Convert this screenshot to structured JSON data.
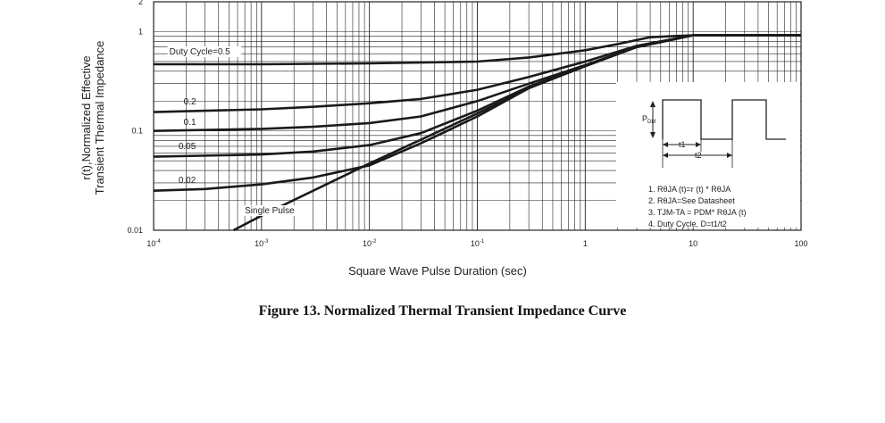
{
  "caption": "Figure 13. Normalized Thermal Transient Impedance Curve",
  "chart_data": {
    "type": "line",
    "title": "",
    "xlabel": "Square Wave Pulse Duration (sec)",
    "ylabel": "r(t),Normalized Effective Transient Thermal Impedance",
    "ylabel_lines": [
      "r(t),Normalized Effective",
      "Transient Thermal Impedance"
    ],
    "x_scale": "log",
    "y_scale": "log",
    "xlim": [
      0.0001,
      100
    ],
    "ylim": [
      0.01,
      2
    ],
    "grid": true,
    "x_ticks": [
      {
        "base": "10",
        "exp": "-4"
      },
      {
        "base": "10",
        "exp": "-3"
      },
      {
        "base": "10",
        "exp": "-2"
      },
      {
        "base": "10",
        "exp": "-1"
      },
      {
        "base": "1",
        "exp": ""
      },
      {
        "base": "10",
        "exp": ""
      },
      {
        "base": "100",
        "exp": ""
      }
    ],
    "y_ticks": [
      "0.01",
      "0.1",
      "1",
      "2"
    ],
    "series": [
      {
        "name": "Duty Cycle=0.5",
        "points": [
          [
            0.0001,
            0.47
          ],
          [
            0.001,
            0.47
          ],
          [
            0.01,
            0.48
          ],
          [
            0.1,
            0.5
          ],
          [
            0.3,
            0.55
          ],
          [
            1,
            0.65
          ],
          [
            2,
            0.75
          ],
          [
            4,
            0.88
          ],
          [
            10,
            0.92
          ],
          [
            30,
            0.92
          ],
          [
            100,
            0.92
          ]
        ]
      },
      {
        "name": "0.2",
        "points": [
          [
            0.0001,
            0.155
          ],
          [
            0.001,
            0.165
          ],
          [
            0.003,
            0.175
          ],
          [
            0.01,
            0.19
          ],
          [
            0.03,
            0.21
          ],
          [
            0.1,
            0.26
          ],
          [
            0.3,
            0.35
          ],
          [
            1,
            0.5
          ],
          [
            3,
            0.72
          ],
          [
            10,
            0.92
          ],
          [
            100,
            0.92
          ]
        ]
      },
      {
        "name": "0.1",
        "points": [
          [
            0.0001,
            0.1
          ],
          [
            0.001,
            0.105
          ],
          [
            0.003,
            0.11
          ],
          [
            0.01,
            0.12
          ],
          [
            0.03,
            0.14
          ],
          [
            0.1,
            0.2
          ],
          [
            0.3,
            0.3
          ],
          [
            1,
            0.46
          ],
          [
            3,
            0.7
          ],
          [
            10,
            0.92
          ],
          [
            100,
            0.92
          ]
        ]
      },
      {
        "name": "0.05",
        "points": [
          [
            0.0001,
            0.055
          ],
          [
            0.001,
            0.058
          ],
          [
            0.003,
            0.062
          ],
          [
            0.01,
            0.072
          ],
          [
            0.03,
            0.095
          ],
          [
            0.1,
            0.16
          ],
          [
            0.3,
            0.28
          ],
          [
            1,
            0.45
          ],
          [
            3,
            0.7
          ],
          [
            10,
            0.92
          ],
          [
            100,
            0.92
          ]
        ]
      },
      {
        "name": "0.02",
        "points": [
          [
            0.0001,
            0.025
          ],
          [
            0.0003,
            0.026
          ],
          [
            0.001,
            0.029
          ],
          [
            0.003,
            0.034
          ],
          [
            0.01,
            0.045
          ],
          [
            0.03,
            0.075
          ],
          [
            0.1,
            0.14
          ],
          [
            0.3,
            0.27
          ],
          [
            1,
            0.45
          ],
          [
            3,
            0.7
          ],
          [
            10,
            0.92
          ],
          [
            100,
            0.92
          ]
        ]
      },
      {
        "name": "Single Pulse",
        "points": [
          [
            0.00055,
            0.01
          ],
          [
            0.001,
            0.014
          ],
          [
            0.01,
            0.047
          ],
          [
            0.1,
            0.15
          ],
          [
            0.3,
            0.27
          ],
          [
            1,
            0.45
          ],
          [
            3,
            0.7
          ],
          [
            10,
            0.92
          ],
          [
            100,
            0.92
          ]
        ]
      }
    ],
    "series_label_text": [
      "Duty Cycle=0.5",
      "0.2",
      "0.1",
      "0.05",
      "0.02",
      "Single Pulse"
    ],
    "inset": {
      "pdm": "P",
      "pdm_sub": "DM",
      "t1": "t1",
      "t2": "t2",
      "notes": [
        "1. RθJA (t)=r (t) * RθJA",
        "2. RθJA=See Datasheet",
        "3. TJM-TA = PDM* RθJA (t)",
        "4. Duty Cycle, D=t1/t2"
      ]
    }
  }
}
